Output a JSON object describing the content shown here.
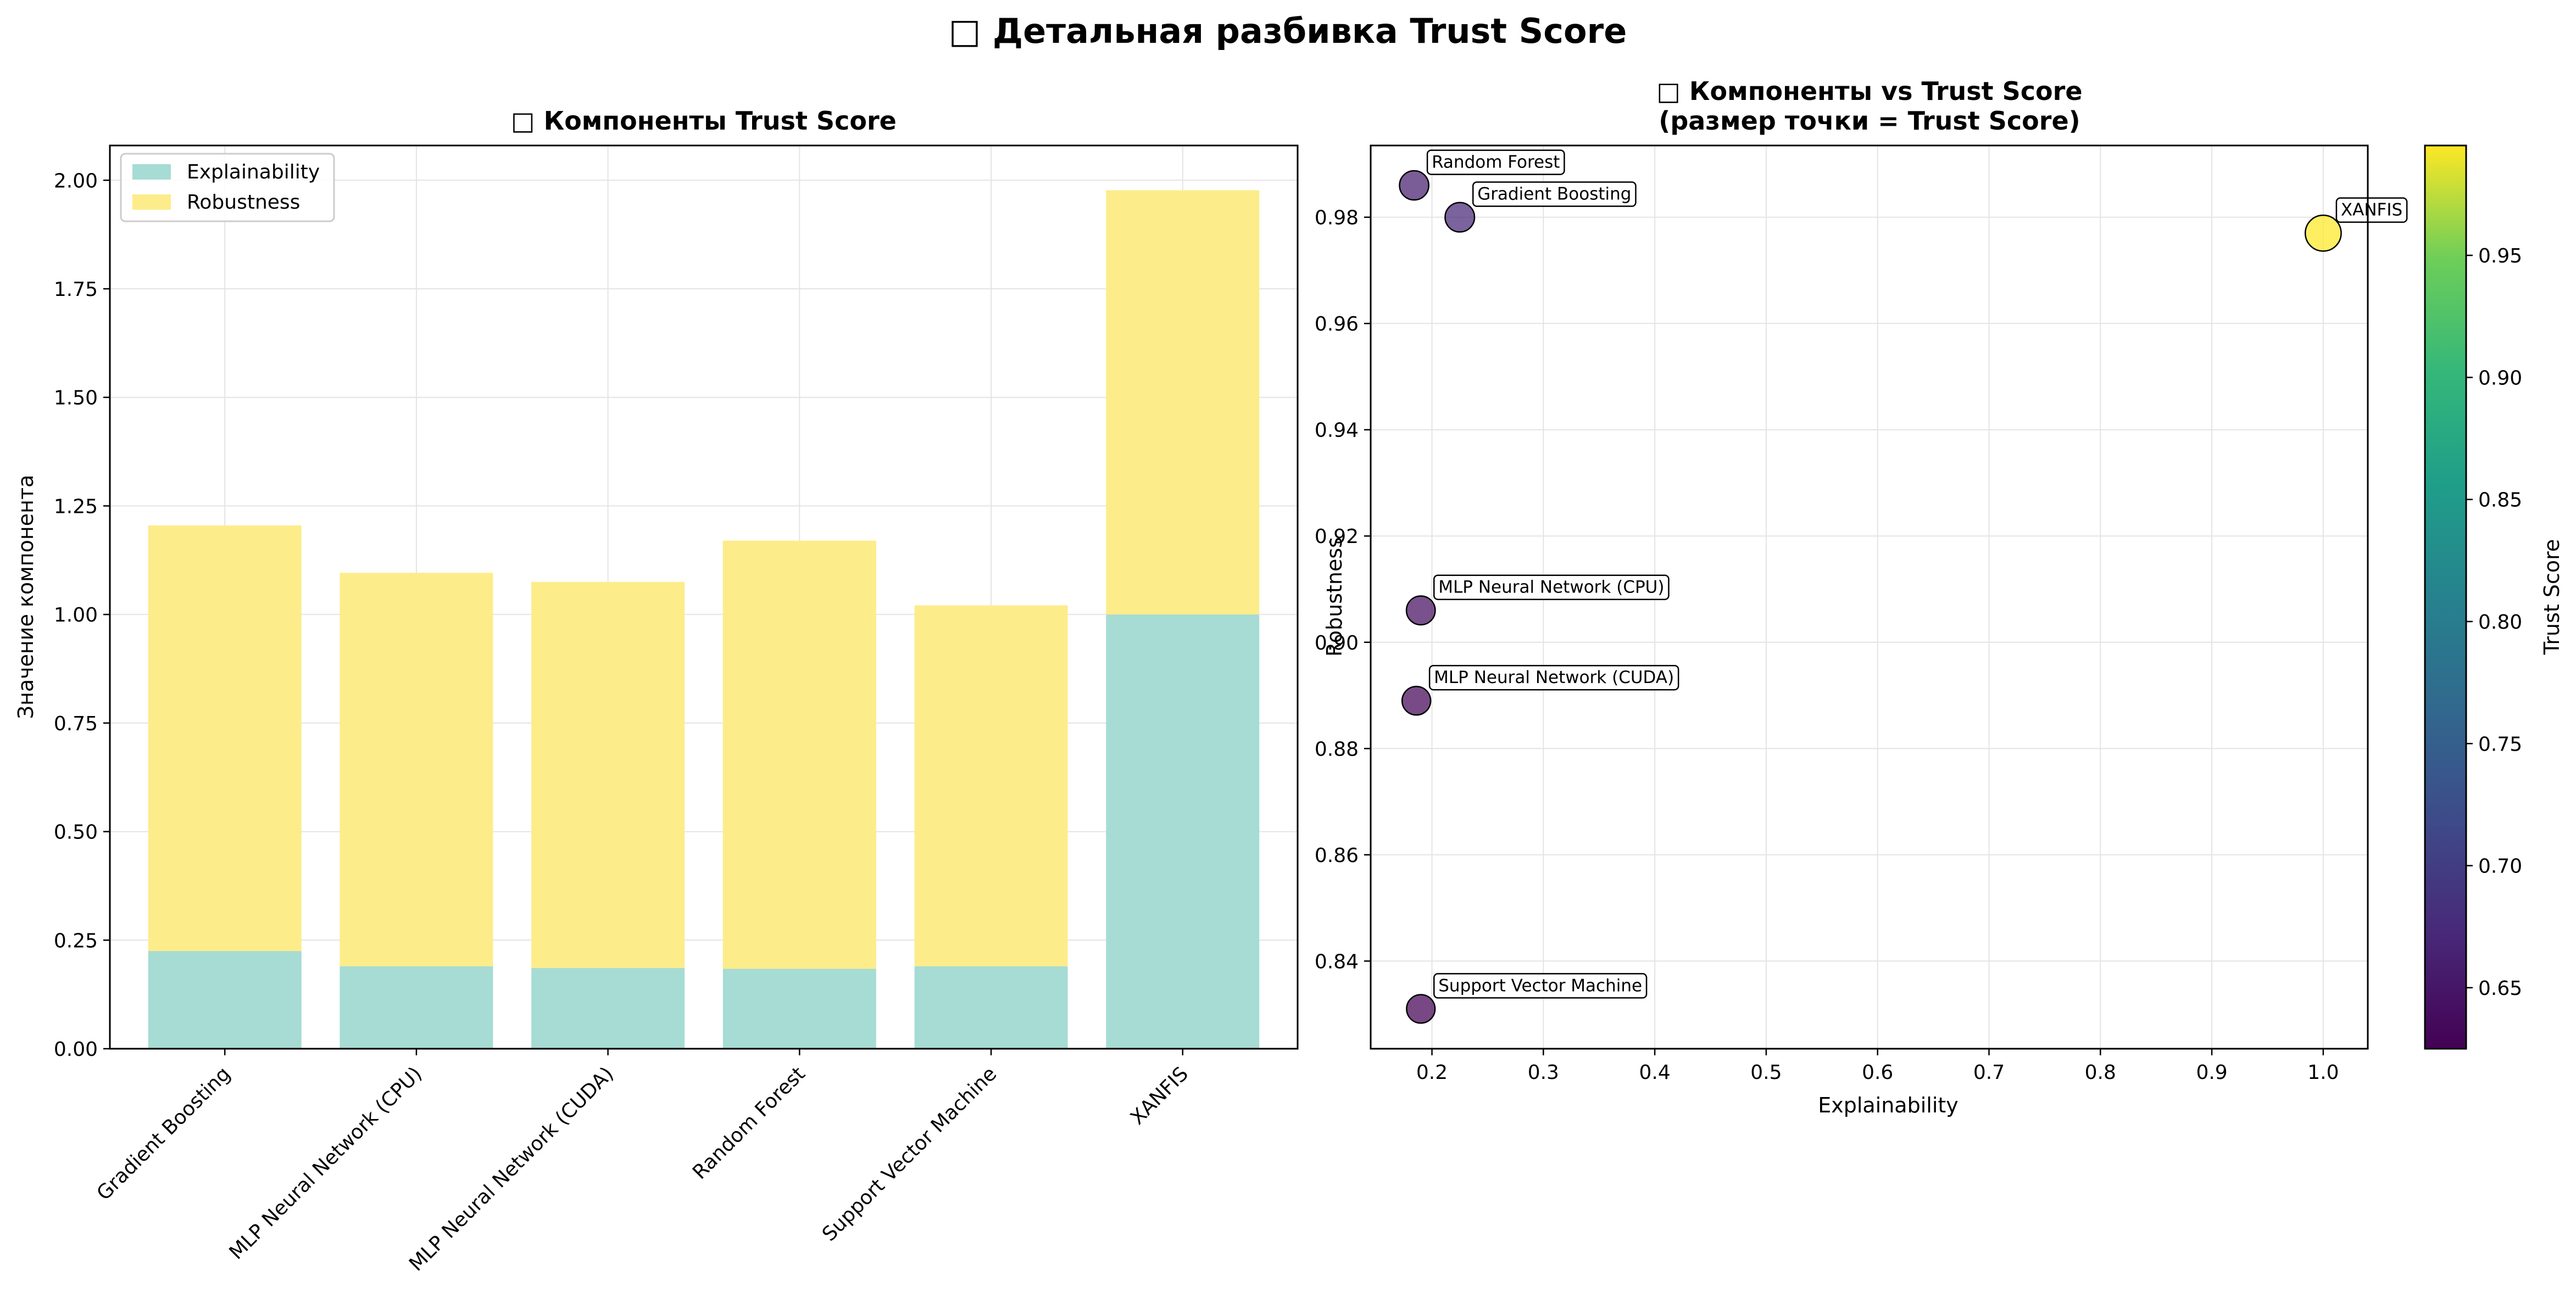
{
  "figure_title": "□ Детальная разбивка Trust Score",
  "colors": {
    "explainability": "#a6dcd4",
    "robustness": "#fdec8a",
    "grid": "#e4e4e4",
    "axis": "#000000"
  },
  "chart_data": [
    {
      "type": "bar",
      "stacked": true,
      "title": "□ Компоненты Trust Score",
      "xlabel": "",
      "ylabel": "Значение компонента",
      "categories": [
        "Gradient Boosting",
        "MLP Neural Network (CPU)",
        "MLP Neural Network (CUDA)",
        "Random Forest",
        "Support Vector Machine",
        "XANFIS"
      ],
      "series": [
        {
          "name": "Explainability",
          "values": [
            0.225,
            0.19,
            0.186,
            0.184,
            0.19,
            1.0
          ]
        },
        {
          "name": "Robustness",
          "values": [
            0.98,
            0.906,
            0.889,
            0.986,
            0.831,
            0.977
          ]
        }
      ],
      "ylim": [
        0,
        2.08
      ],
      "yticks": [
        0.0,
        0.25,
        0.5,
        0.75,
        1.0,
        1.25,
        1.5,
        1.75,
        2.0
      ],
      "ytick_labels": [
        "0.00",
        "0.25",
        "0.50",
        "0.75",
        "1.00",
        "1.25",
        "1.50",
        "1.75",
        "2.00"
      ],
      "grid": true,
      "legend": "top-left"
    },
    {
      "type": "scatter",
      "title": "□ Компоненты vs Trust Score",
      "subtitle": "(размер точки = Trust Score)",
      "xlabel": "Explainability",
      "ylabel": "Robustness",
      "points": [
        {
          "label": "Gradient Boosting",
          "x": 0.225,
          "y": 0.98,
          "trust": 0.67
        },
        {
          "label": "MLP Neural Network (CPU)",
          "x": 0.19,
          "y": 0.906,
          "trust": 0.64
        },
        {
          "label": "MLP Neural Network (CUDA)",
          "x": 0.186,
          "y": 0.889,
          "trust": 0.63
        },
        {
          "label": "Random Forest",
          "x": 0.184,
          "y": 0.986,
          "trust": 0.66
        },
        {
          "label": "Support Vector Machine",
          "x": 0.19,
          "y": 0.831,
          "trust": 0.625
        },
        {
          "label": "XANFIS",
          "x": 1.0,
          "y": 0.977,
          "trust": 0.995
        }
      ],
      "xlim": [
        0.145,
        1.04
      ],
      "ylim": [
        0.8235,
        0.9935
      ],
      "xticks": [
        0.2,
        0.3,
        0.4,
        0.5,
        0.6,
        0.7,
        0.8,
        0.9,
        1.0
      ],
      "xtick_labels": [
        "0.2",
        "0.3",
        "0.4",
        "0.5",
        "0.6",
        "0.7",
        "0.8",
        "0.9",
        "1.0"
      ],
      "yticks": [
        0.84,
        0.86,
        0.88,
        0.9,
        0.92,
        0.94,
        0.96,
        0.98
      ],
      "ytick_labels": [
        "0.84",
        "0.86",
        "0.88",
        "0.90",
        "0.92",
        "0.94",
        "0.96",
        "0.98"
      ],
      "grid": true,
      "colorbar": {
        "label": "Trust Score",
        "colormap": "viridis",
        "range": [
          0.625,
          0.995
        ],
        "ticks": [
          0.65,
          0.7,
          0.75,
          0.8,
          0.85,
          0.9,
          0.95
        ],
        "tick_labels": [
          "0.65",
          "0.70",
          "0.75",
          "0.80",
          "0.85",
          "0.90",
          "0.95"
        ]
      }
    }
  ]
}
